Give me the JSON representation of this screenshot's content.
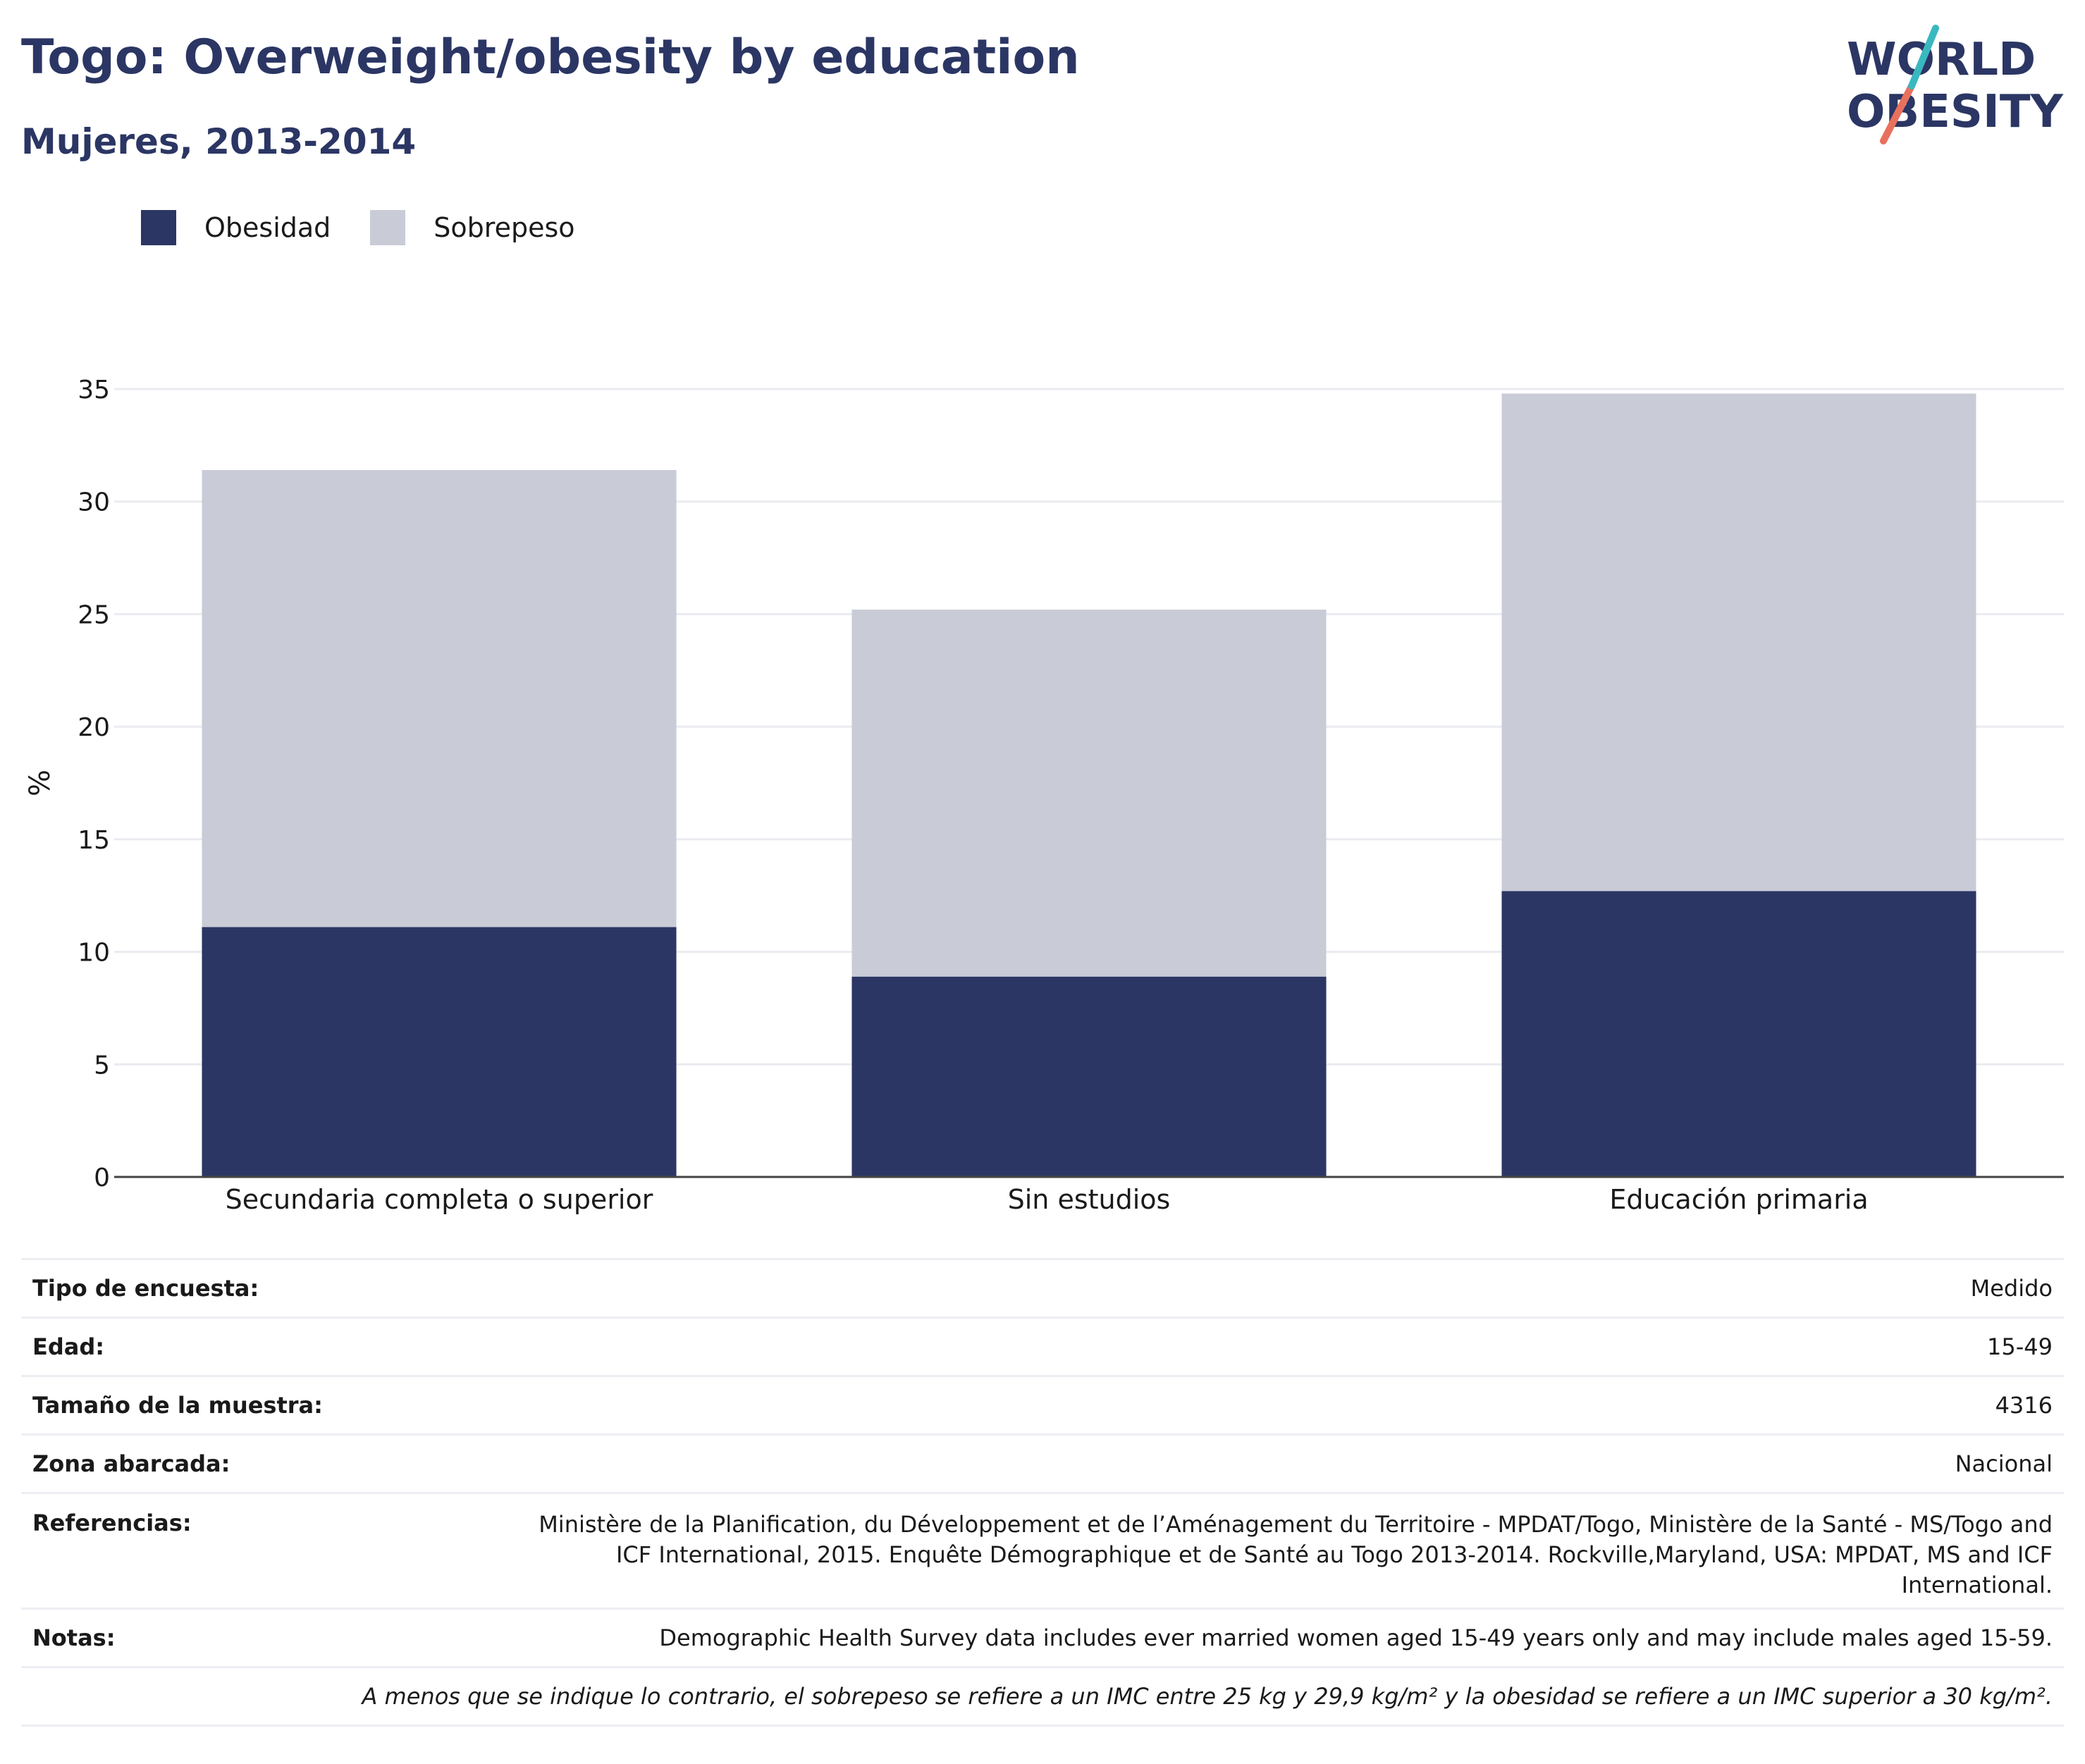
{
  "header": {
    "title": "Togo: Overweight/obesity by education",
    "subtitle": "Mujeres, 2013-2014"
  },
  "logo": {
    "line1": "WORLD",
    "line2": "OBESITY"
  },
  "colors": {
    "obesidad": "#2b3664",
    "sobrepeso": "#c9cbd6",
    "title": "#2b3664",
    "logo_teal": "#3ab8bf",
    "logo_coral": "#e8715d"
  },
  "chart_data": {
    "type": "bar",
    "stacked": true,
    "categories": [
      "Secundaria completa o superior",
      "Sin estudios",
      "Educación primaria"
    ],
    "series": [
      {
        "name": "Obesidad",
        "values": [
          11.1,
          8.9,
          12.7
        ]
      },
      {
        "name": "Sobrepeso",
        "values": [
          20.3,
          16.3,
          22.1
        ]
      }
    ],
    "ylabel": "%",
    "ylim": [
      0,
      35
    ],
    "yticks": [
      0,
      5,
      10,
      15,
      20,
      25,
      30,
      35
    ],
    "grid": true,
    "legend_position": "top-left"
  },
  "info": {
    "rows": [
      {
        "label": "Tipo de encuesta:",
        "value": "Medido"
      },
      {
        "label": "Edad:",
        "value": "15-49"
      },
      {
        "label": "Tamaño de la muestra:",
        "value": "4316"
      },
      {
        "label": "Zona abarcada:",
        "value": "Nacional"
      },
      {
        "label": "Referencias:",
        "value": "Ministère de la Planification, du Développement et de l’Aménagement du Territoire - MPDAT/Togo, Ministère de la Santé - MS/Togo and ICF International, 2015. Enquête Démographique et de Santé au Togo 2013-2014. Rockville,Maryland, USA: MPDAT, MS and ICF International."
      },
      {
        "label": "Notas:",
        "value": "Demographic Health Survey data includes ever married women aged 15-49 years only and may include males aged 15-59."
      }
    ],
    "footnote": "A menos que se indique lo contrario, el sobrepeso se refiere a un IMC entre 25 kg y 29,9 kg/m² y la obesidad se refiere a un IMC superior a 30 kg/m²."
  }
}
